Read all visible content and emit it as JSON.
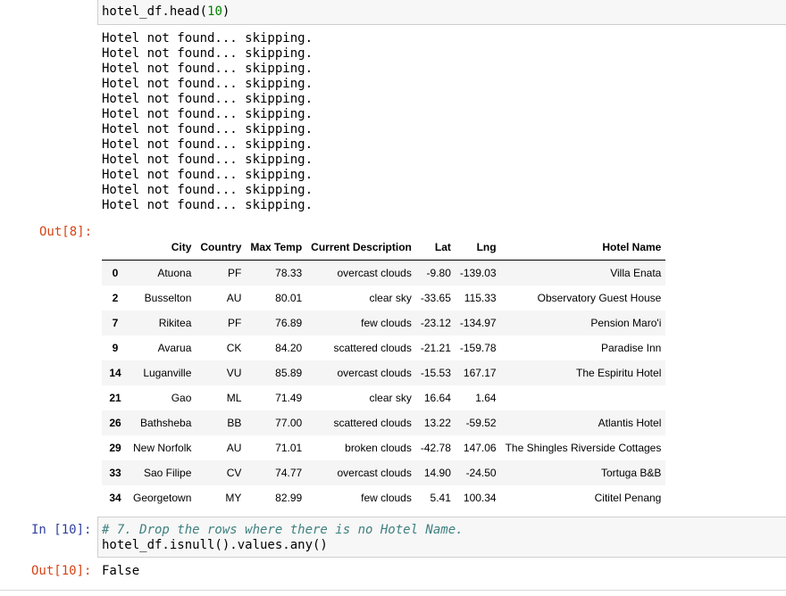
{
  "cell8": {
    "code_prefix": "hotel_df.head(",
    "code_number": "10",
    "code_suffix": ")",
    "stdout_lines": [
      "Hotel not found... skipping.",
      "Hotel not found... skipping.",
      "Hotel not found... skipping.",
      "Hotel not found... skipping.",
      "Hotel not found... skipping.",
      "Hotel not found... skipping.",
      "Hotel not found... skipping.",
      "Hotel not found... skipping.",
      "Hotel not found... skipping.",
      "Hotel not found... skipping.",
      "Hotel not found... skipping.",
      "Hotel not found... skipping."
    ],
    "out_prompt": "Out[8]:"
  },
  "table": {
    "columns": [
      "City",
      "Country",
      "Max Temp",
      "Current Description",
      "Lat",
      "Lng",
      "Hotel Name"
    ],
    "rows": [
      {
        "index": "0",
        "cells": [
          "Atuona",
          "PF",
          "78.33",
          "overcast clouds",
          "-9.80",
          "-139.03",
          "Villa Enata"
        ]
      },
      {
        "index": "2",
        "cells": [
          "Busselton",
          "AU",
          "80.01",
          "clear sky",
          "-33.65",
          "115.33",
          "Observatory Guest House"
        ]
      },
      {
        "index": "7",
        "cells": [
          "Rikitea",
          "PF",
          "76.89",
          "few clouds",
          "-23.12",
          "-134.97",
          "Pension Maro'i"
        ]
      },
      {
        "index": "9",
        "cells": [
          "Avarua",
          "CK",
          "84.20",
          "scattered clouds",
          "-21.21",
          "-159.78",
          "Paradise Inn"
        ]
      },
      {
        "index": "14",
        "cells": [
          "Luganville",
          "VU",
          "85.89",
          "overcast clouds",
          "-15.53",
          "167.17",
          "The Espiritu Hotel"
        ]
      },
      {
        "index": "21",
        "cells": [
          "Gao",
          "ML",
          "71.49",
          "clear sky",
          "16.64",
          "1.64",
          ""
        ]
      },
      {
        "index": "26",
        "cells": [
          "Bathsheba",
          "BB",
          "77.00",
          "scattered clouds",
          "13.22",
          "-59.52",
          "Atlantis Hotel"
        ]
      },
      {
        "index": "29",
        "cells": [
          "New Norfolk",
          "AU",
          "71.01",
          "broken clouds",
          "-42.78",
          "147.06",
          "The Shingles Riverside Cottages"
        ]
      },
      {
        "index": "33",
        "cells": [
          "Sao Filipe",
          "CV",
          "74.77",
          "overcast clouds",
          "14.90",
          "-24.50",
          "Tortuga B&B"
        ]
      },
      {
        "index": "34",
        "cells": [
          "Georgetown",
          "MY",
          "82.99",
          "few clouds",
          "5.41",
          "100.34",
          "Cititel Penang"
        ]
      }
    ]
  },
  "cell10": {
    "in_prompt": "In [10]:",
    "comment": "# 7. Drop the rows where there is no Hotel Name.",
    "code": "hotel_df.isnull().values.any()",
    "out_prompt": "Out[10]:",
    "result": "False"
  }
}
